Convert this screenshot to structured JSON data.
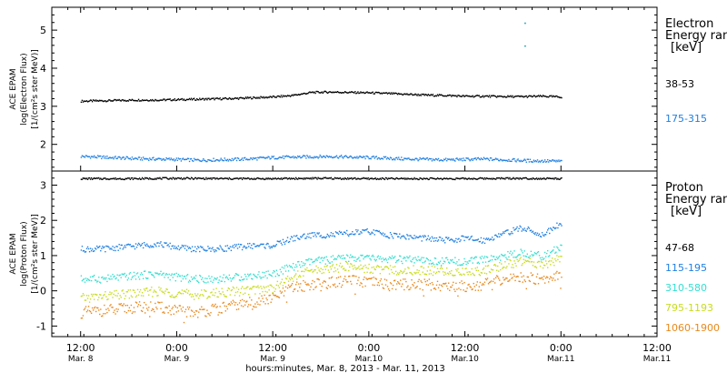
{
  "chart_data": [
    {
      "type": "scatter",
      "panel": "electron",
      "ylabel_lines": [
        "ACE EPAM",
        "log(Electron Flux)",
        "[1/(cm²s ster MeV)]"
      ],
      "yticks": [
        2,
        3,
        4,
        5
      ],
      "ylim": [
        1.3,
        5.6
      ],
      "legend_title": [
        "Electron",
        "Energy ran",
        "[keV]"
      ],
      "grid": false,
      "series": [
        {
          "name": "38-53",
          "color": "#000000",
          "x": [
            0.0,
            0.1,
            0.2,
            0.3,
            0.4,
            0.5,
            0.6,
            0.7,
            0.8,
            0.9,
            1.0,
            1.1,
            1.2,
            1.3,
            1.4,
            1.5,
            1.6,
            1.7,
            1.8,
            1.9,
            2.0,
            2.1,
            2.2,
            2.3,
            2.4,
            2.5
          ],
          "values": [
            3.15,
            3.16,
            3.17,
            3.18,
            3.18,
            3.19,
            3.2,
            3.21,
            3.22,
            3.24,
            3.26,
            3.3,
            3.38,
            3.39,
            3.38,
            3.37,
            3.35,
            3.33,
            3.31,
            3.3,
            3.28,
            3.28,
            3.27,
            3.27,
            3.28,
            3.26
          ]
        },
        {
          "name": "175-315",
          "color": "#1f7fe0",
          "x": [
            0.0,
            0.1,
            0.2,
            0.3,
            0.4,
            0.5,
            0.6,
            0.7,
            0.8,
            0.9,
            1.0,
            1.1,
            1.2,
            1.3,
            1.4,
            1.5,
            1.6,
            1.7,
            1.8,
            1.9,
            2.0,
            2.1,
            2.2,
            2.3,
            2.4,
            2.5
          ],
          "values": [
            1.7,
            1.68,
            1.66,
            1.64,
            1.63,
            1.62,
            1.6,
            1.61,
            1.62,
            1.64,
            1.67,
            1.68,
            1.69,
            1.7,
            1.68,
            1.67,
            1.65,
            1.63,
            1.62,
            1.61,
            1.62,
            1.63,
            1.61,
            1.59,
            1.58,
            1.57
          ]
        }
      ],
      "outliers": [
        {
          "x": 2.31,
          "y": 5.2
        },
        {
          "x": 2.31,
          "y": 4.6
        }
      ]
    },
    {
      "type": "scatter",
      "panel": "proton",
      "ylabel_lines": [
        "ACE EPAM",
        "log(Proton Flux)",
        "[1/(cm²s ster MeV)]"
      ],
      "yticks": [
        -1,
        0,
        1,
        2,
        3
      ],
      "ylim": [
        -1.3,
        3.4
      ],
      "legend_title": [
        "Proton",
        "Energy ran",
        "[keV]"
      ],
      "grid": false,
      "series": [
        {
          "name": "47-68",
          "color": "#000000",
          "x": [
            0.0,
            0.25,
            0.5,
            0.75,
            1.0,
            1.25,
            1.5,
            1.75,
            2.0,
            2.25,
            2.5
          ],
          "values": [
            3.2,
            3.2,
            3.21,
            3.2,
            3.2,
            3.21,
            3.2,
            3.2,
            3.2,
            3.21,
            3.2
          ]
        },
        {
          "name": "115-195",
          "color": "#1f7fe0",
          "x": [
            0.0,
            0.1,
            0.2,
            0.3,
            0.4,
            0.5,
            0.6,
            0.7,
            0.8,
            0.9,
            1.0,
            1.1,
            1.2,
            1.3,
            1.4,
            1.5,
            1.6,
            1.7,
            1.8,
            1.9,
            2.0,
            2.1,
            2.2,
            2.3,
            2.4,
            2.5
          ],
          "values": [
            1.2,
            1.2,
            1.25,
            1.3,
            1.35,
            1.25,
            1.2,
            1.2,
            1.25,
            1.3,
            1.3,
            1.5,
            1.6,
            1.6,
            1.65,
            1.7,
            1.6,
            1.55,
            1.5,
            1.45,
            1.5,
            1.45,
            1.65,
            1.8,
            1.6,
            1.95
          ]
        },
        {
          "name": "310-580",
          "color": "#33dfd0",
          "x": [
            0.0,
            0.1,
            0.2,
            0.3,
            0.4,
            0.5,
            0.6,
            0.7,
            0.8,
            0.9,
            1.0,
            1.1,
            1.2,
            1.3,
            1.4,
            1.5,
            1.6,
            1.7,
            1.8,
            1.9,
            2.0,
            2.1,
            2.2,
            2.3,
            2.4,
            2.5
          ],
          "values": [
            0.35,
            0.35,
            0.4,
            0.45,
            0.5,
            0.4,
            0.35,
            0.35,
            0.4,
            0.45,
            0.5,
            0.7,
            0.85,
            0.9,
            0.95,
            0.95,
            0.9,
            0.9,
            0.85,
            0.85,
            0.85,
            0.9,
            1.0,
            1.1,
            1.0,
            1.25
          ]
        },
        {
          "name": "795-1193",
          "color": "#c8dc20",
          "x": [
            0.0,
            0.1,
            0.2,
            0.3,
            0.4,
            0.5,
            0.6,
            0.7,
            0.8,
            0.9,
            1.0,
            1.1,
            1.2,
            1.3,
            1.4,
            1.5,
            1.6,
            1.7,
            1.8,
            1.9,
            2.0,
            2.1,
            2.2,
            2.3,
            2.4,
            2.5
          ],
          "values": [
            -0.2,
            -0.15,
            -0.1,
            -0.05,
            0.0,
            -0.05,
            -0.1,
            -0.05,
            0.0,
            0.05,
            0.1,
            0.4,
            0.6,
            0.65,
            0.7,
            0.65,
            0.6,
            0.6,
            0.6,
            0.55,
            0.55,
            0.6,
            0.75,
            0.85,
            0.75,
            0.95
          ]
        },
        {
          "name": "1060-1900",
          "color": "#e8891c",
          "x": [
            0.0,
            0.1,
            0.2,
            0.3,
            0.4,
            0.5,
            0.6,
            0.7,
            0.8,
            0.9,
            1.0,
            1.1,
            1.2,
            1.3,
            1.4,
            1.5,
            1.6,
            1.7,
            1.8,
            1.9,
            2.0,
            2.1,
            2.2,
            2.3,
            2.4,
            2.5
          ],
          "values": [
            -0.6,
            -0.55,
            -0.5,
            -0.45,
            -0.45,
            -0.55,
            -0.6,
            -0.5,
            -0.4,
            -0.3,
            -0.2,
            0.1,
            0.2,
            0.25,
            0.3,
            0.25,
            0.2,
            0.2,
            0.2,
            0.15,
            0.15,
            0.2,
            0.35,
            0.4,
            0.35,
            0.5
          ]
        }
      ]
    }
  ],
  "xaxis": {
    "xlim": [
      -0.15,
      3.0
    ],
    "ticks": [
      {
        "x": 0.0,
        "time": "12:00",
        "date": "Mar. 8"
      },
      {
        "x": 0.5,
        "time": "0:00",
        "date": "Mar. 9"
      },
      {
        "x": 1.0,
        "time": "12:00",
        "date": "Mar. 9"
      },
      {
        "x": 1.5,
        "time": "0:00",
        "date": "Mar.10"
      },
      {
        "x": 2.0,
        "time": "12:00",
        "date": "Mar.10"
      },
      {
        "x": 2.5,
        "time": "0:00",
        "date": "Mar.11"
      },
      {
        "x": 3.0,
        "time": "12:00",
        "date": "Mar.11"
      }
    ],
    "label": "hours:minutes, Mar. 8, 2013 - Mar. 11, 2013"
  }
}
